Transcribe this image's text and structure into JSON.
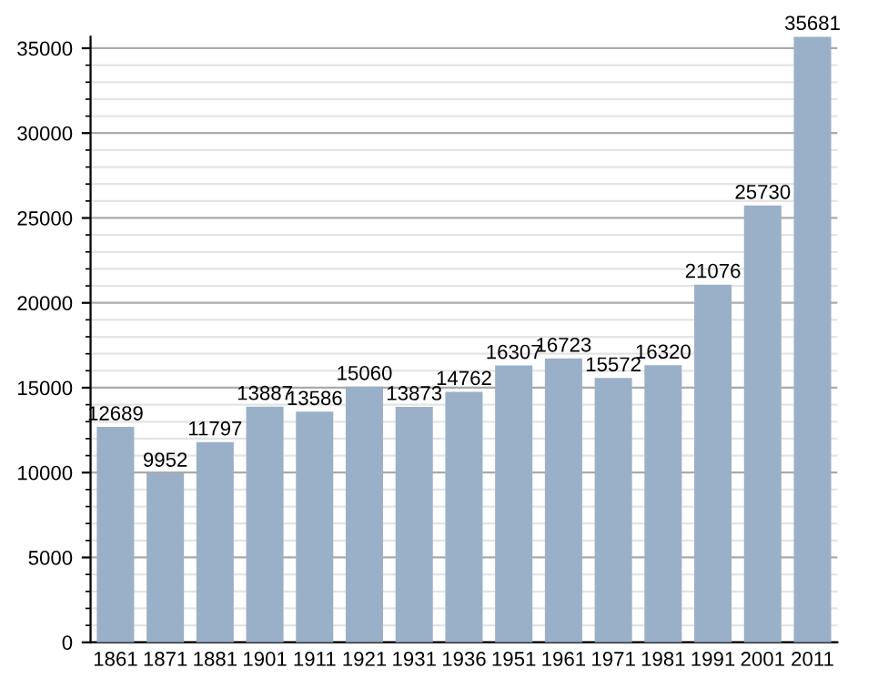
{
  "chart_data": {
    "type": "bar",
    "categories": [
      "1861",
      "1871",
      "1881",
      "1901",
      "1911",
      "1921",
      "1931",
      "1936",
      "1951",
      "1961",
      "1971",
      "1981",
      "1991",
      "2001",
      "2011"
    ],
    "values": [
      12689,
      9952,
      11797,
      13887,
      13586,
      15060,
      13873,
      14762,
      16307,
      16723,
      15572,
      16320,
      21076,
      25730,
      35681
    ],
    "color": "#9ab0c9",
    "ylim": [
      0,
      35681
    ],
    "yticks": [
      0,
      5000,
      10000,
      15000,
      20000,
      25000,
      30000,
      35000
    ],
    "grid": "y",
    "data_labels": true
  }
}
